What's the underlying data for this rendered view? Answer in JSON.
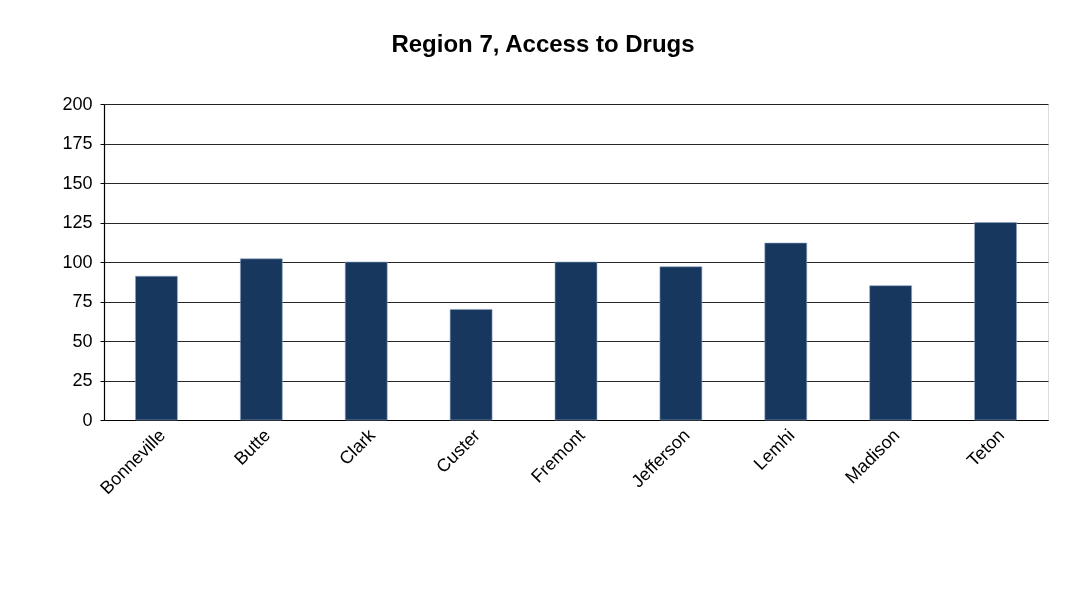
{
  "chart_data": {
    "type": "bar",
    "title": "Region 7, Access to Drugs",
    "categories": [
      "Bonneville",
      "Butte",
      "Clark",
      "Custer",
      "Fremont",
      "Jefferson",
      "Lemhi",
      "Madison",
      "Teton"
    ],
    "values": [
      91,
      102,
      100,
      70,
      100,
      97,
      112,
      85,
      125
    ],
    "color": "#17375e",
    "ylim": [
      0,
      200
    ],
    "yticks": [
      0,
      25,
      50,
      75,
      100,
      125,
      150,
      175,
      200
    ],
    "grid": "y"
  }
}
